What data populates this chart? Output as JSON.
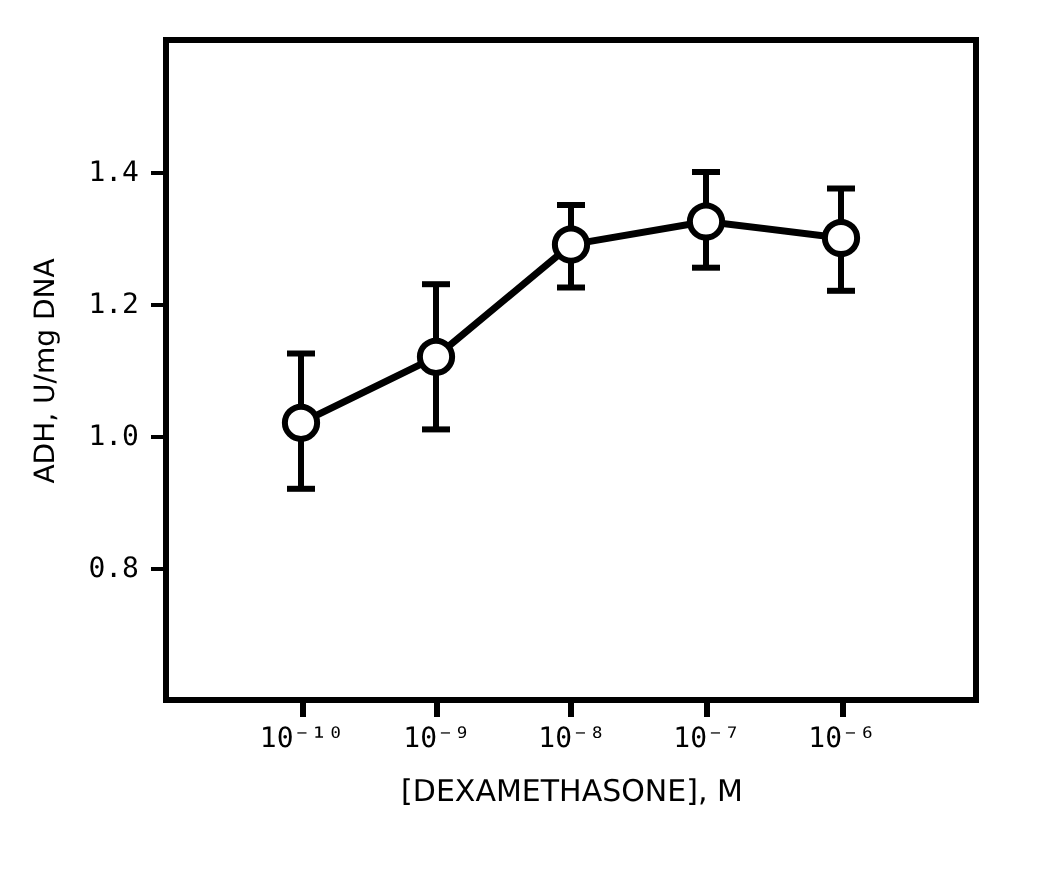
{
  "chart_data": {
    "type": "line",
    "xlabel": "[DEXAMETHASONE], M",
    "ylabel": "ADH, U/mg DNA",
    "x": [
      1e-10,
      1e-09,
      1e-08,
      1e-07,
      1e-06
    ],
    "series": [
      {
        "color": "#000000",
        "values": [
          1.02,
          1.12,
          1.29,
          1.325,
          1.3
        ],
        "errors": [
          [
            0.92,
            1.125
          ],
          [
            1.01,
            1.23
          ],
          [
            1.225,
            1.35
          ],
          [
            1.255,
            1.4
          ],
          [
            1.22,
            1.375
          ]
        ]
      }
    ],
    "log": "x",
    "xlim": [
      1e-11,
      1e-05
    ],
    "ylim": [
      0.6,
      1.6
    ],
    "xticks": [
      {
        "value": 1e-10,
        "label": "10⁻¹⁰"
      },
      {
        "value": 1e-09,
        "label": "10⁻⁹"
      },
      {
        "value": 1e-08,
        "label": "10⁻⁸"
      },
      {
        "value": 1e-07,
        "label": "10⁻⁷"
      },
      {
        "value": 1e-06,
        "label": "10⁻⁶"
      }
    ],
    "yticks": [
      {
        "value": 0.8,
        "label": "0.8"
      },
      {
        "value": 1.0,
        "label": "1.0"
      },
      {
        "value": 1.2,
        "label": "1.2"
      },
      {
        "value": 1.4,
        "label": "1.4"
      }
    ],
    "grid": false,
    "marker": "circle",
    "line_style": "solid"
  }
}
